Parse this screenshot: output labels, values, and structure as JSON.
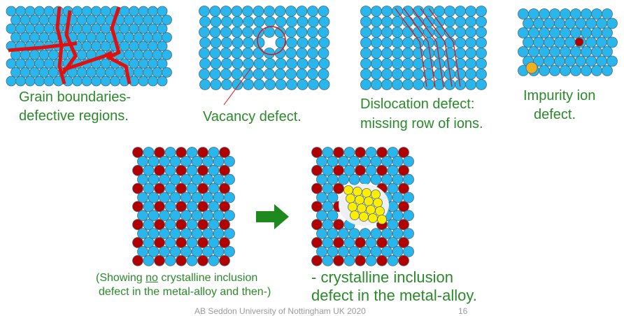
{
  "colors": {
    "host_ion": "#29b6ec",
    "alloy_ion": "#b00000",
    "impurity": "#f0b020",
    "inclusion": "#ffee00",
    "boundary": "#e01010",
    "text": "#2a8a2a",
    "arrow": "#1e8a1e"
  },
  "panels": {
    "grain": {
      "line1": "Grain boundaries-",
      "line2": "defective regions."
    },
    "vacancy": {
      "label": "Vacancy defect."
    },
    "dislocation": {
      "line1": "Dislocation defect:",
      "line2": "missing row of ions."
    },
    "impurity": {
      "line1": "Impurity ion",
      "line2": "defect."
    }
  },
  "bottom": {
    "left_caption_pre": "(Showing ",
    "left_caption_underlined": "no",
    "left_caption_post": " crystalline inclusion",
    "left_caption_line2": "defect in the metal-alloy and then-)",
    "right_caption_line1": "- crystalline inclusion",
    "right_caption_line2": "defect in the metal-alloy.",
    "arrow_icon": "right-arrow-icon"
  },
  "footer": {
    "credit": "AB Seddon  University of Nottingham UK 2020",
    "page": "16"
  }
}
